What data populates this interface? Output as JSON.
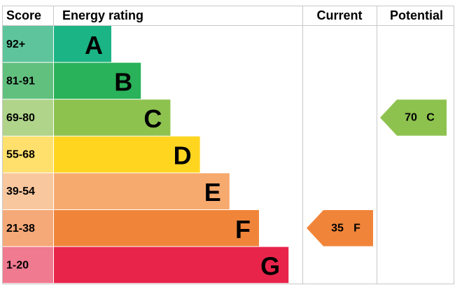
{
  "header": {
    "score": "Score",
    "rating": "Energy rating",
    "current": "Current",
    "potential": "Potential"
  },
  "bands": [
    {
      "score": "92+",
      "letter": "A",
      "color": "#1bb484",
      "score_color": "#5ec49c"
    },
    {
      "score": "81-91",
      "letter": "B",
      "color": "#29b25a",
      "score_color": "#62c07f"
    },
    {
      "score": "69-80",
      "letter": "C",
      "color": "#8dc24f",
      "score_color": "#afd48a"
    },
    {
      "score": "55-68",
      "letter": "D",
      "color": "#ffd520",
      "score_color": "#ffe06c"
    },
    {
      "score": "39-54",
      "letter": "E",
      "color": "#f6aa6e",
      "score_color": "#f9c79e"
    },
    {
      "score": "21-38",
      "letter": "F",
      "color": "#f0853a",
      "score_color": "#f5a878"
    },
    {
      "score": "1-20",
      "letter": "G",
      "color": "#e9244a",
      "score_color": "#f07a90"
    }
  ],
  "current": {
    "score": 35,
    "letter": "F"
  },
  "potential": {
    "score": 70,
    "letter": "C"
  }
}
